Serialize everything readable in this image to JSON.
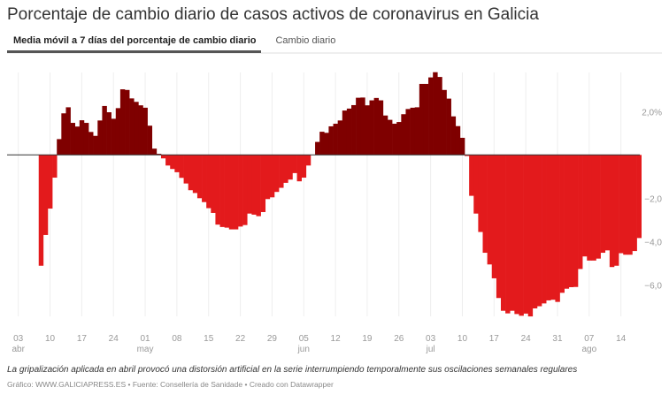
{
  "title": "Porcentaje de cambio diario de casos activos de coronavirus en Galicia",
  "tabs": [
    {
      "label": "Media móvil a 7 días del porcentaje de cambio diario",
      "active": true
    },
    {
      "label": "Cambio diario",
      "active": false
    }
  ],
  "note": "La gripalización aplicada en abril provocó una distorsión artificial en la serie interrumpiendo temporalmente sus oscilaciones semanales regulares",
  "credit": "Gráfico: WWW.GALICIAPRESS.ES • Fuente: Consellería de Sanidade • Creado con Datawrapper",
  "colors": {
    "positive": "#7f0000",
    "negative": "#e31a1c",
    "grid": "#eeeeee",
    "zero_line": "#333333"
  },
  "chart_data": {
    "type": "bar",
    "title": "Porcentaje de cambio diario de casos activos de coronavirus en Galicia",
    "xlabel": "",
    "ylabel": "",
    "ylim": [
      -7.6,
      3.9
    ],
    "grid": {
      "x": true,
      "y": false
    },
    "y_ticks": [
      {
        "value": 2,
        "label": "2,0%"
      },
      {
        "value": -2,
        "label": "−2,0"
      },
      {
        "value": -4,
        "label": "−4,0"
      },
      {
        "value": -6,
        "label": "−6,0"
      }
    ],
    "x_ticks": [
      {
        "date": "04-03",
        "label": "03",
        "month": "abr"
      },
      {
        "date": "04-10",
        "label": "10",
        "month": ""
      },
      {
        "date": "04-17",
        "label": "17",
        "month": ""
      },
      {
        "date": "04-24",
        "label": "24",
        "month": ""
      },
      {
        "date": "05-01",
        "label": "01",
        "month": "may"
      },
      {
        "date": "05-08",
        "label": "08",
        "month": ""
      },
      {
        "date": "05-15",
        "label": "15",
        "month": ""
      },
      {
        "date": "05-22",
        "label": "22",
        "month": ""
      },
      {
        "date": "05-29",
        "label": "29",
        "month": ""
      },
      {
        "date": "06-05",
        "label": "05",
        "month": "jun"
      },
      {
        "date": "06-12",
        "label": "12",
        "month": ""
      },
      {
        "date": "06-19",
        "label": "19",
        "month": ""
      },
      {
        "date": "06-26",
        "label": "26",
        "month": ""
      },
      {
        "date": "07-03",
        "label": "03",
        "month": "jul"
      },
      {
        "date": "07-10",
        "label": "10",
        "month": ""
      },
      {
        "date": "07-17",
        "label": "17",
        "month": ""
      },
      {
        "date": "07-24",
        "label": "24",
        "month": ""
      },
      {
        "date": "07-31",
        "label": "31",
        "month": ""
      },
      {
        "date": "08-07",
        "label": "07",
        "month": "ago"
      },
      {
        "date": "08-14",
        "label": "14",
        "month": ""
      }
    ],
    "points": [
      [
        "04-08",
        -5.12
      ],
      [
        "04-09",
        -3.7
      ],
      [
        "04-10",
        -2.48
      ],
      [
        "04-11",
        -1.05
      ],
      [
        "04-12",
        0.73
      ],
      [
        "04-13",
        1.92
      ],
      [
        "04-14",
        2.2
      ],
      [
        "04-15",
        1.48
      ],
      [
        "04-16",
        1.31
      ],
      [
        "04-17",
        1.6
      ],
      [
        "04-18",
        1.48
      ],
      [
        "04-19",
        1.06
      ],
      [
        "04-20",
        0.88
      ],
      [
        "04-21",
        1.59
      ],
      [
        "04-22",
        2.26
      ],
      [
        "04-23",
        1.97
      ],
      [
        "04-24",
        1.67
      ],
      [
        "04-25",
        2.16
      ],
      [
        "04-26",
        3.03
      ],
      [
        "04-27",
        3.0
      ],
      [
        "04-28",
        2.61
      ],
      [
        "04-29",
        2.45
      ],
      [
        "04-30",
        2.29
      ],
      [
        "05-01",
        2.18
      ],
      [
        "05-02",
        1.35
      ],
      [
        "05-03",
        0.29
      ],
      [
        "05-04",
        0.05
      ],
      [
        "05-05",
        -0.16
      ],
      [
        "05-06",
        -0.49
      ],
      [
        "05-07",
        -0.65
      ],
      [
        "05-08",
        -0.8
      ],
      [
        "05-09",
        -1.06
      ],
      [
        "05-10",
        -1.32
      ],
      [
        "05-11",
        -1.63
      ],
      [
        "05-12",
        -1.76
      ],
      [
        "05-13",
        -2.0
      ],
      [
        "05-14",
        -2.18
      ],
      [
        "05-15",
        -2.46
      ],
      [
        "05-16",
        -2.68
      ],
      [
        "05-17",
        -3.22
      ],
      [
        "05-18",
        -3.33
      ],
      [
        "05-19",
        -3.36
      ],
      [
        "05-20",
        -3.44
      ],
      [
        "05-21",
        -3.44
      ],
      [
        "05-22",
        -3.31
      ],
      [
        "05-23",
        -3.24
      ],
      [
        "05-24",
        -2.71
      ],
      [
        "05-25",
        -2.76
      ],
      [
        "05-26",
        -2.83
      ],
      [
        "05-27",
        -2.64
      ],
      [
        "05-28",
        -2.04
      ],
      [
        "05-29",
        -1.96
      ],
      [
        "05-30",
        -1.71
      ],
      [
        "05-31",
        -1.52
      ],
      [
        "06-01",
        -1.29
      ],
      [
        "06-02",
        -1.14
      ],
      [
        "06-03",
        -0.84
      ],
      [
        "06-04",
        -1.22
      ],
      [
        "06-05",
        -1.05
      ],
      [
        "06-06",
        -0.49
      ],
      [
        "06-07",
        0.0
      ],
      [
        "06-08",
        0.6
      ],
      [
        "06-09",
        1.07
      ],
      [
        "06-10",
        1.02
      ],
      [
        "06-11",
        1.32
      ],
      [
        "06-12",
        1.44
      ],
      [
        "06-13",
        1.59
      ],
      [
        "06-14",
        2.05
      ],
      [
        "06-15",
        2.14
      ],
      [
        "06-16",
        2.3
      ],
      [
        "06-17",
        2.64
      ],
      [
        "06-18",
        2.65
      ],
      [
        "06-19",
        2.29
      ],
      [
        "06-20",
        2.52
      ],
      [
        "06-21",
        2.63
      ],
      [
        "06-22",
        2.52
      ],
      [
        "06-23",
        1.82
      ],
      [
        "06-24",
        1.62
      ],
      [
        "06-25",
        1.44
      ],
      [
        "06-26",
        1.52
      ],
      [
        "06-27",
        1.88
      ],
      [
        "06-28",
        2.12
      ],
      [
        "06-29",
        2.18
      ],
      [
        "06-30",
        2.2
      ],
      [
        "07-01",
        3.28
      ],
      [
        "07-02",
        3.28
      ],
      [
        "07-03",
        3.58
      ],
      [
        "07-04",
        3.82
      ],
      [
        "07-05",
        3.6
      ],
      [
        "07-06",
        3.0
      ],
      [
        "07-07",
        2.6
      ],
      [
        "07-08",
        1.78
      ],
      [
        "07-09",
        1.33
      ],
      [
        "07-10",
        0.79
      ],
      [
        "07-11",
        -0.05
      ],
      [
        "07-12",
        -1.89
      ],
      [
        "07-13",
        -2.71
      ],
      [
        "07-14",
        -3.56
      ],
      [
        "07-15",
        -4.52
      ],
      [
        "07-16",
        -5.06
      ],
      [
        "07-17",
        -5.7
      ],
      [
        "07-18",
        -6.61
      ],
      [
        "07-19",
        -7.2
      ],
      [
        "07-20",
        -7.32
      ],
      [
        "07-21",
        -7.2
      ],
      [
        "07-22",
        -7.35
      ],
      [
        "07-23",
        -7.43
      ],
      [
        "07-24",
        -7.33
      ],
      [
        "07-25",
        -7.46
      ],
      [
        "07-26",
        -7.09
      ],
      [
        "07-27",
        -6.99
      ],
      [
        "07-28",
        -6.86
      ],
      [
        "07-29",
        -6.72
      ],
      [
        "07-30",
        -6.69
      ],
      [
        "07-31",
        -6.79
      ],
      [
        "08-01",
        -6.37
      ],
      [
        "08-02",
        -6.18
      ],
      [
        "08-03",
        -6.11
      ],
      [
        "08-04",
        -6.1
      ],
      [
        "08-05",
        -5.27
      ],
      [
        "08-06",
        -4.69
      ],
      [
        "08-07",
        -4.88
      ],
      [
        "08-08",
        -4.88
      ],
      [
        "08-09",
        -4.79
      ],
      [
        "08-10",
        -4.52
      ],
      [
        "08-11",
        -4.41
      ],
      [
        "08-12",
        -5.18
      ],
      [
        "08-13",
        -5.12
      ],
      [
        "08-14",
        -4.54
      ],
      [
        "08-15",
        -4.61
      ],
      [
        "08-16",
        -4.61
      ],
      [
        "08-17",
        -4.44
      ],
      [
        "08-18",
        -3.84
      ]
    ]
  }
}
